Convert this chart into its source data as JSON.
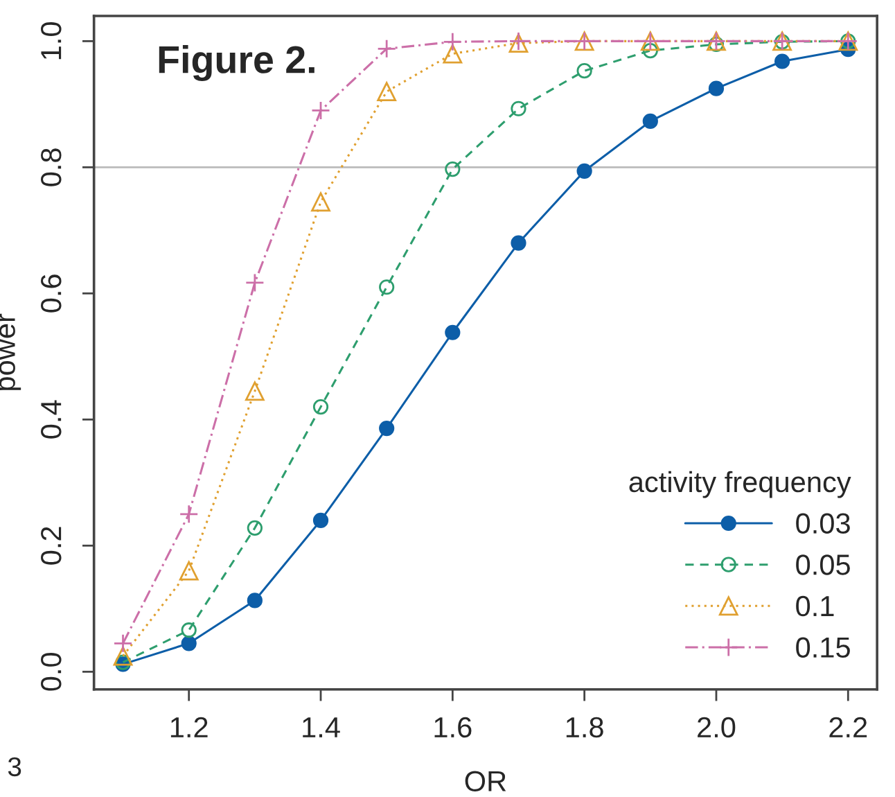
{
  "chart_data": {
    "type": "line",
    "xlabel": "OR",
    "ylabel": "power",
    "legend_title": "activity frequency",
    "x": [
      1.1,
      1.2,
      1.3,
      1.4,
      1.5,
      1.6,
      1.7,
      1.8,
      1.9,
      2.0,
      2.1,
      2.2
    ],
    "series": [
      {
        "name": "0.03",
        "color": "#0d5ea8",
        "marker": "circle",
        "line_style": "solid",
        "values": [
          0.012,
          0.045,
          0.113,
          0.24,
          0.386,
          0.538,
          0.68,
          0.794,
          0.873,
          0.925,
          0.968,
          0.987
        ]
      },
      {
        "name": "0.05",
        "color": "#2e9e6e",
        "marker": "circle",
        "line_style": "dashed",
        "values": [
          0.015,
          0.066,
          0.228,
          0.42,
          0.61,
          0.797,
          0.893,
          0.953,
          0.985,
          0.995,
          0.999,
          1.0
        ]
      },
      {
        "name": "0.1",
        "color": "#e0a030",
        "marker": "triangle",
        "line_style": "dotted",
        "values": [
          0.025,
          0.16,
          0.445,
          0.745,
          0.92,
          0.98,
          0.997,
          1.0,
          1.0,
          1.0,
          1.0,
          1.0
        ]
      },
      {
        "name": "0.15",
        "color": "#cc6fa8",
        "marker": "cross",
        "line_style": "dashdot",
        "values": [
          0.045,
          0.25,
          0.617,
          0.89,
          0.988,
          0.999,
          1.0,
          1.0,
          1.0,
          1.0,
          1.0,
          1.0
        ]
      }
    ],
    "xlim": [
      1.056,
      2.244
    ],
    "xticks": [
      {
        "value": 1.2,
        "label": "1.2"
      },
      {
        "value": 1.4,
        "label": "1.4"
      },
      {
        "value": 1.6,
        "label": "1.6"
      },
      {
        "value": 1.8,
        "label": "1.8"
      },
      {
        "value": 2.0,
        "label": "2.0"
      },
      {
        "value": 2.2,
        "label": "2.2"
      }
    ],
    "ylim": [
      -0.028,
      1.04
    ],
    "yticks": [
      {
        "value": 0.0,
        "label": "0.0"
      },
      {
        "value": 0.2,
        "label": "0.2"
      },
      {
        "value": 0.4,
        "label": "0.4"
      },
      {
        "value": 0.6,
        "label": "0.6"
      },
      {
        "value": 0.8,
        "label": "0.8"
      },
      {
        "value": 1.0,
        "label": "1.0"
      }
    ],
    "ref_lines": [
      {
        "axis": "y",
        "value": 0.8,
        "color": "#bbbbbb"
      }
    ],
    "annotations": [
      "Figure 2.",
      "3"
    ],
    "legend": "bottom right",
    "grid": false
  }
}
